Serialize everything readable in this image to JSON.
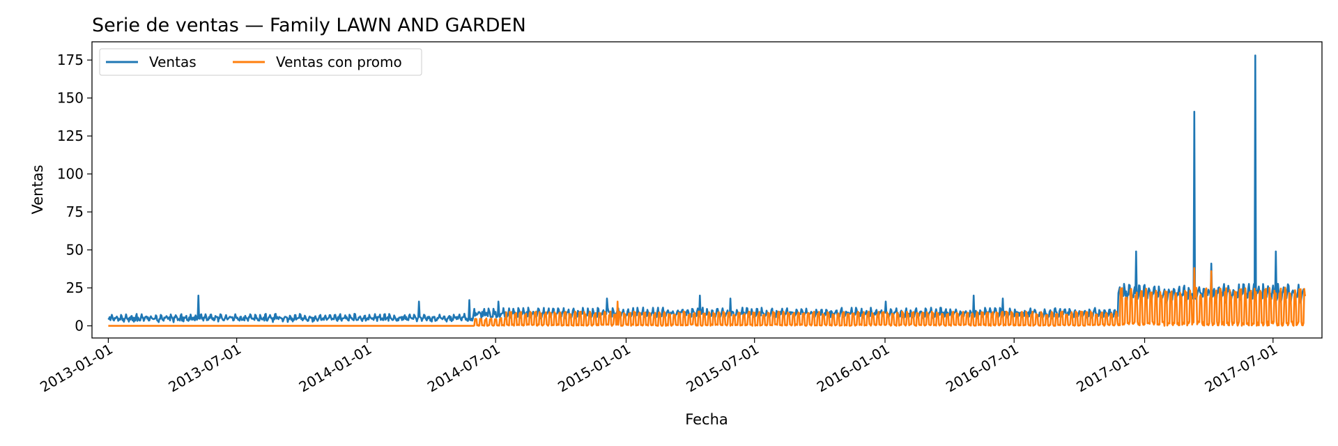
{
  "chart_data": {
    "type": "line",
    "title": "Serie de ventas — Family LAWN AND GARDEN",
    "xlabel": "Fecha",
    "ylabel": "Ventas",
    "xlim": [
      "2012-12-09",
      "2017-09-08"
    ],
    "ylim": [
      -8,
      187
    ],
    "x_ticks": [
      "2013-01-01",
      "2013-07-01",
      "2014-01-01",
      "2014-07-01",
      "2015-01-01",
      "2015-07-01",
      "2016-01-01",
      "2016-07-01",
      "2017-01-01",
      "2017-07-01"
    ],
    "y_ticks": [
      0,
      25,
      50,
      75,
      100,
      125,
      150,
      175
    ],
    "grid": false,
    "legend": {
      "position": "top-left",
      "columns": 2
    },
    "x_range": [
      "2013-01-01",
      "2017-08-15"
    ],
    "series": [
      {
        "name": "Ventas",
        "color": "#1f77b4",
        "segments": [
          {
            "start": "2013-01-01",
            "end": "2014-05-31",
            "base": 5,
            "amplitude": 3
          },
          {
            "start": "2014-06-01",
            "end": "2016-11-24",
            "base": 8,
            "amplitude": 4
          },
          {
            "start": "2016-11-25",
            "end": "2017-08-15",
            "base": 21,
            "amplitude": 7
          }
        ],
        "spikes": [
          {
            "date": "2013-05-08",
            "value": 20
          },
          {
            "date": "2014-03-15",
            "value": 16
          },
          {
            "date": "2014-05-25",
            "value": 17
          },
          {
            "date": "2014-07-05",
            "value": 16
          },
          {
            "date": "2014-12-05",
            "value": 18
          },
          {
            "date": "2015-04-15",
            "value": 20
          },
          {
            "date": "2015-05-28",
            "value": 18
          },
          {
            "date": "2016-01-02",
            "value": 16
          },
          {
            "date": "2016-05-05",
            "value": 20
          },
          {
            "date": "2016-06-15",
            "value": 18
          },
          {
            "date": "2016-12-20",
            "value": 49
          },
          {
            "date": "2017-03-12",
            "value": 141
          },
          {
            "date": "2017-04-05",
            "value": 41
          },
          {
            "date": "2017-06-06",
            "value": 178
          },
          {
            "date": "2017-07-05",
            "value": 49
          }
        ]
      },
      {
        "name": "Ventas con promo",
        "color": "#ff7f0e",
        "segments": [
          {
            "start": "2013-01-01",
            "end": "2014-05-31",
            "base": 0,
            "amplitude": 0
          },
          {
            "start": "2014-06-01",
            "end": "2014-07-15",
            "base": 0,
            "amplitude": 5
          },
          {
            "start": "2014-07-16",
            "end": "2016-11-24",
            "base": 0,
            "amplitude": 9
          },
          {
            "start": "2016-11-25",
            "end": "2017-08-15",
            "base": 0,
            "amplitude": 24
          }
        ],
        "spikes": [
          {
            "date": "2014-12-20",
            "value": 16
          },
          {
            "date": "2017-03-12",
            "value": 38
          },
          {
            "date": "2017-04-05",
            "value": 36
          }
        ]
      }
    ]
  }
}
